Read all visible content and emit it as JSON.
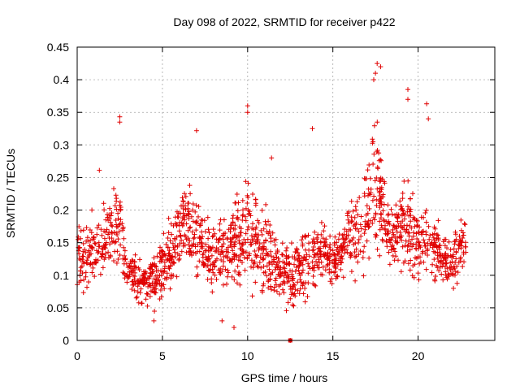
{
  "chart_data": {
    "type": "scatter",
    "title": "Day 098 of 2022, SRMTID for receiver p422",
    "xlabel": "GPS time / hours",
    "ylabel": "SRMTID / TECUs",
    "xlim": [
      0,
      24.5
    ],
    "ylim": [
      0,
      0.45
    ],
    "x_ticks": [
      0,
      5,
      10,
      15,
      20
    ],
    "x_tick_labels": [
      "0",
      "5",
      "10",
      "15",
      "20"
    ],
    "y_ticks": [
      0,
      0.05,
      0.1,
      0.15,
      0.2,
      0.25,
      0.3,
      0.35,
      0.4,
      0.45
    ],
    "y_tick_labels": [
      "0",
      "0.05",
      "0.1",
      "0.15",
      "0.2",
      "0.25",
      "0.3",
      "0.35",
      "0.4",
      "0.45"
    ],
    "grid": true,
    "marker": "plus",
    "color": "#e00000",
    "envelope": {
      "hours": [
        0.0,
        0.5,
        1.0,
        1.5,
        2.0,
        2.5,
        3.0,
        3.5,
        4.0,
        4.5,
        5.0,
        5.5,
        6.0,
        6.5,
        7.0,
        7.5,
        8.0,
        8.5,
        9.0,
        9.5,
        10.0,
        10.5,
        11.0,
        11.5,
        12.0,
        12.5,
        13.0,
        13.5,
        14.0,
        14.5,
        15.0,
        15.5,
        16.0,
        16.5,
        17.0,
        17.5,
        18.0,
        18.5,
        19.0,
        19.5,
        20.0,
        20.5,
        21.0,
        21.5,
        22.0,
        22.5,
        22.8
      ],
      "low": [
        0.05,
        0.05,
        0.07,
        0.08,
        0.1,
        0.08,
        0.06,
        0.05,
        0.04,
        0.04,
        0.05,
        0.06,
        0.08,
        0.09,
        0.08,
        0.07,
        0.06,
        0.06,
        0.05,
        0.06,
        0.07,
        0.06,
        0.04,
        0.05,
        0.05,
        0.02,
        0.04,
        0.05,
        0.06,
        0.07,
        0.07,
        0.08,
        0.08,
        0.06,
        0.09,
        0.1,
        0.1,
        0.09,
        0.08,
        0.08,
        0.06,
        0.07,
        0.08,
        0.07,
        0.06,
        0.07,
        0.09
      ],
      "high": [
        0.18,
        0.2,
        0.2,
        0.21,
        0.22,
        0.26,
        0.14,
        0.14,
        0.13,
        0.15,
        0.17,
        0.19,
        0.24,
        0.26,
        0.23,
        0.2,
        0.19,
        0.2,
        0.22,
        0.26,
        0.28,
        0.24,
        0.22,
        0.18,
        0.16,
        0.16,
        0.18,
        0.19,
        0.2,
        0.19,
        0.17,
        0.18,
        0.24,
        0.26,
        0.3,
        0.38,
        0.26,
        0.22,
        0.24,
        0.26,
        0.22,
        0.24,
        0.2,
        0.18,
        0.17,
        0.21,
        0.18
      ]
    },
    "annotated_points": [
      {
        "x": 1.3,
        "y": 0.261
      },
      {
        "x": 2.5,
        "y": 0.343
      },
      {
        "x": 2.5,
        "y": 0.335
      },
      {
        "x": 7.0,
        "y": 0.322
      },
      {
        "x": 10.0,
        "y": 0.36
      },
      {
        "x": 10.0,
        "y": 0.35
      },
      {
        "x": 11.4,
        "y": 0.28
      },
      {
        "x": 13.8,
        "y": 0.325
      },
      {
        "x": 17.6,
        "y": 0.425
      },
      {
        "x": 17.8,
        "y": 0.42
      },
      {
        "x": 17.5,
        "y": 0.41
      },
      {
        "x": 17.4,
        "y": 0.4
      },
      {
        "x": 19.4,
        "y": 0.385
      },
      {
        "x": 19.4,
        "y": 0.37
      },
      {
        "x": 20.5,
        "y": 0.363
      },
      {
        "x": 20.6,
        "y": 0.34
      },
      {
        "x": 12.5,
        "y": 0.0
      },
      {
        "x": 9.2,
        "y": 0.02
      },
      {
        "x": 8.5,
        "y": 0.03
      },
      {
        "x": 4.5,
        "y": 0.03
      }
    ]
  }
}
